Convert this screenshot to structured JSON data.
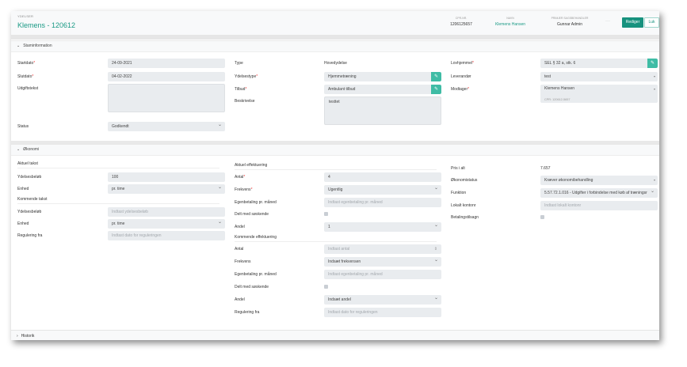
{
  "header": {
    "breadcrumb": "YDELSER",
    "title": "Klemens - 120612",
    "meta": [
      {
        "label": "CPR-NR.",
        "value": "1206125657",
        "link": false
      },
      {
        "label": "NAVN",
        "value": "Klemens Hansen",
        "link": true
      },
      {
        "label": "PRIMÆR SAGSBEHANDLER",
        "value": "Gunnar Admin",
        "link": false
      }
    ],
    "more_label": "···",
    "edit_label": "Rediger",
    "close_label": "Luk"
  },
  "stamdata": {
    "title": "Staminformation",
    "col1": [
      {
        "label": "Startdato",
        "required": true,
        "type": "text",
        "value": "24-09-2021"
      },
      {
        "label": "Slutdato",
        "required": true,
        "type": "text",
        "value": "04-02-2022"
      },
      {
        "label": "Udgiftstekst",
        "required": false,
        "type": "textarea",
        "value": ""
      },
      {
        "label": "Status",
        "required": false,
        "type": "select",
        "value": "Godkendt"
      }
    ],
    "col2": [
      {
        "label": "Type",
        "required": false,
        "type": "static",
        "value": "Hovedydelse"
      },
      {
        "label": "Ydelsestype",
        "required": true,
        "type": "edit",
        "value": "Hjemmetræning"
      },
      {
        "label": "Tilbud",
        "required": true,
        "type": "edit",
        "value": "Ambulant tilbud"
      },
      {
        "label": "Beskrivelse",
        "required": false,
        "type": "textarea",
        "value": "testtet"
      }
    ],
    "col3": [
      {
        "label": "Lovhjemmel",
        "required": true,
        "type": "edit",
        "value": "SEL § 32 a, stk. 6"
      },
      {
        "label": "Leverandør",
        "required": false,
        "type": "select2",
        "value": "test"
      },
      {
        "label": "Modtager",
        "required": true,
        "type": "recipient",
        "value": "Klemens Hansen",
        "sub": "CPR: 120612-5657"
      }
    ]
  },
  "okonomi": {
    "title": "Økonomi",
    "col1": [
      {
        "type": "subhead",
        "label": "Aktuel takst"
      },
      {
        "label": "Ydelsesbeløb",
        "type": "text",
        "value": "100"
      },
      {
        "label": "Enhed",
        "type": "select",
        "value": "pr. time"
      },
      {
        "type": "subhead",
        "label": "Kommende takst"
      },
      {
        "label": "Ydelsesbeløb",
        "type": "placeholder",
        "value": "Indtast ydelsesbeløb"
      },
      {
        "label": "Enhed",
        "type": "select",
        "value": "pr. time"
      },
      {
        "label": "Regulering fra",
        "type": "placeholder",
        "value": "Indtast dato for reguleringen"
      }
    ],
    "col2": [
      {
        "type": "subhead",
        "label": "Aktuel effektuering"
      },
      {
        "label": "Antal",
        "required": true,
        "type": "text",
        "value": "4"
      },
      {
        "label": "Frekvens",
        "required": true,
        "type": "select",
        "value": "Ugentlig"
      },
      {
        "label": "Egenbetaling pr. måned",
        "type": "placeholder",
        "value": "Indtast egenbetaling pr. måned"
      },
      {
        "label": "Delt med søskende",
        "type": "checkbox",
        "checked": false
      },
      {
        "label": "Andel",
        "type": "select",
        "value": "1"
      },
      {
        "type": "subhead",
        "label": "Kommende effektuering"
      },
      {
        "label": "Antal",
        "type": "number",
        "value": "Indtast antal"
      },
      {
        "label": "Frekvens",
        "type": "select",
        "value": "Indsæt frekvensen"
      },
      {
        "label": "Egenbetaling pr. måned",
        "type": "placeholder",
        "value": "Indtast egenbetaling pr. måned"
      },
      {
        "label": "Delt med søskende",
        "type": "checkbox",
        "checked": false
      },
      {
        "label": "Andel",
        "type": "select",
        "value": "Indsæt andel"
      },
      {
        "label": "Regulering fra",
        "type": "placeholder",
        "value": "Indtast dato for reguleringen"
      }
    ],
    "col3": [
      {
        "label": "Pris i alt",
        "type": "static",
        "value": "7.657"
      },
      {
        "label": "Økonomistatus",
        "type": "select2",
        "value": "Kræver økonomibehandling"
      },
      {
        "label": "Funktion",
        "type": "select",
        "value": "5.57.72.1.016 - Udgifter i forbindelse med køb af træningsr"
      },
      {
        "label": "Lokalt kontonr",
        "type": "placeholder",
        "value": "Indtast lokalt kontonr"
      },
      {
        "label": "Betalingstilsagn",
        "type": "checkbox",
        "checked": false
      }
    ]
  },
  "historik": {
    "title": "Historik"
  },
  "colors": {
    "accent": "#17927e",
    "edit_button": "#3fbca5",
    "required": "#ee3333",
    "input_bg": "#e9ecef"
  }
}
